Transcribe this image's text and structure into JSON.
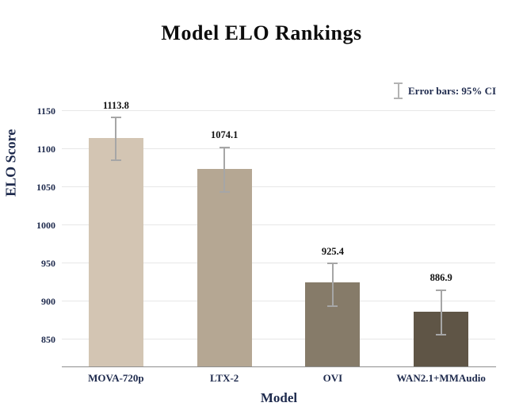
{
  "title": "Model ELO Rankings",
  "legend": {
    "label": "Error bars: 95% CI"
  },
  "chart_data": {
    "type": "bar",
    "title": "Model ELO Rankings",
    "xlabel": "Model",
    "ylabel": "ELO Score",
    "categories": [
      "MOVA-720p",
      "LTX-2",
      "OVI",
      "WAN2.1+MMAudio"
    ],
    "values": [
      1113.8,
      1074.1,
      925.4,
      886.9
    ],
    "error_low": [
      1085,
      1044,
      894,
      857
    ],
    "error_high": [
      1141,
      1102,
      950,
      915
    ],
    "bar_colors": [
      "#d3c5b3",
      "#b5a793",
      "#867b69",
      "#5f5546"
    ],
    "yticks": [
      850,
      900,
      950,
      1000,
      1050,
      1100,
      1150
    ],
    "ylim": [
      815,
      1160
    ],
    "grid": true,
    "legend_position": "upper right",
    "legend_label": "Error bars: 95% CI",
    "error_bar_color": "#a6a6a6",
    "axis_text_color": "#1e2a4d",
    "value_label_color": "#111111"
  }
}
